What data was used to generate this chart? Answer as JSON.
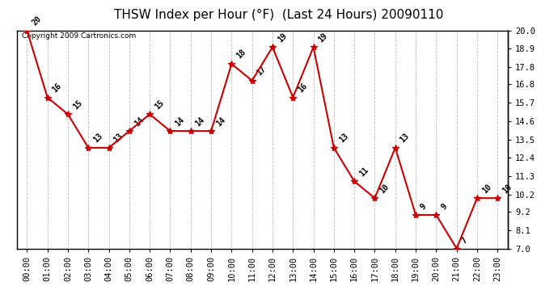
{
  "title": "THSW Index per Hour (°F)  (Last 24 Hours) 20090110",
  "copyright": "Copyright 2009 Cartronics.com",
  "hours": [
    "00:00",
    "01:00",
    "02:00",
    "03:00",
    "04:00",
    "05:00",
    "06:00",
    "07:00",
    "08:00",
    "09:00",
    "10:00",
    "11:00",
    "12:00",
    "13:00",
    "14:00",
    "15:00",
    "16:00",
    "17:00",
    "18:00",
    "19:00",
    "20:00",
    "21:00",
    "22:00",
    "23:00"
  ],
  "values": [
    20,
    16,
    15,
    13,
    13,
    14,
    15,
    14,
    14,
    14,
    18,
    17,
    19,
    16,
    19,
    13,
    11,
    10,
    13,
    9,
    9,
    7,
    10,
    10
  ],
  "ylim": [
    7.0,
    20.0
  ],
  "yticks": [
    7.0,
    8.1,
    9.2,
    10.2,
    11.3,
    12.4,
    13.5,
    14.6,
    15.7,
    16.8,
    17.8,
    18.9,
    20.0
  ],
  "line_color": "#cc0000",
  "marker_color": "#cc0000",
  "bg_color": "#ffffff",
  "plot_bg_color": "#ffffff",
  "grid_color": "#bbbbbb",
  "title_fontsize": 11,
  "label_fontsize": 7.5,
  "annotation_fontsize": 7,
  "copyright_fontsize": 6.5
}
